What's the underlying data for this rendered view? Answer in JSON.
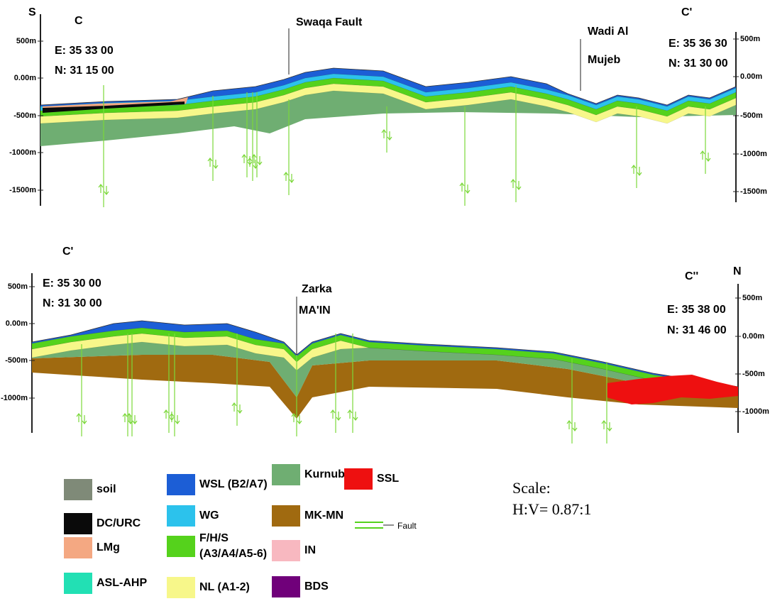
{
  "sections": [
    {
      "start_label": "C",
      "end_label": "C'",
      "left_direction": "S",
      "left_coords": [
        "E: 35 33 00",
        "N: 31 15 00"
      ],
      "right_coords": [
        "E: 35 36 30",
        "N: 31 30 00"
      ],
      "annotations": [
        [
          "Swaqa Fault"
        ],
        [
          "Wadi Al",
          "Mujeb"
        ]
      ],
      "left_axis": [
        "500m",
        "0.00m",
        "-500m",
        "-1000m",
        "-1500m"
      ],
      "right_axis": [
        "500m",
        "0.00m",
        "-500m",
        "-1000m",
        "-1500m"
      ]
    },
    {
      "start_label": "C'",
      "end_label": "C''",
      "right_direction": "N",
      "left_coords": [
        "E: 35 30 00",
        "N: 31 30 00"
      ],
      "right_coords": [
        "E: 35 38 00",
        "N: 31 46 00"
      ],
      "annotations": [
        [
          "Zarka",
          "MA'IN"
        ]
      ],
      "left_axis": [
        "500m",
        "0.00m",
        "-500m",
        "-1000m"
      ],
      "right_axis": [
        "500m",
        "0.00m",
        "-500m",
        "-1000m"
      ]
    }
  ],
  "legend": [
    {
      "lines": [
        "soil"
      ],
      "color": "#7f8a78"
    },
    {
      "lines": [
        "DC/URC"
      ],
      "color": "#0a0a0a"
    },
    {
      "lines": [
        "LMg"
      ],
      "color": "#f4a882"
    },
    {
      "lines": [
        "ASL-AHP"
      ],
      "color": "#22e0b4"
    },
    {
      "lines": [
        "WSL (B2/A7)"
      ],
      "color": "#1c5ed6"
    },
    {
      "lines": [
        "WG"
      ],
      "color": "#2cc2ec"
    },
    {
      "lines": [
        "F/H/S",
        "(A3/A4/A5-6)"
      ],
      "color": "#55d21c"
    },
    {
      "lines": [
        "NL (A1-2)"
      ],
      "color": "#f7f78a"
    },
    {
      "lines": [
        "Kurnub"
      ],
      "color": "#6fae72"
    },
    {
      "lines": [
        "MK-MN"
      ],
      "color": "#a06a10"
    },
    {
      "lines": [
        "IN"
      ],
      "color": "#f8b8c0"
    },
    {
      "lines": [
        "BDS"
      ],
      "color": "#70007a"
    },
    {
      "lines": [
        "SSL"
      ],
      "color": "#ee1010"
    }
  ],
  "fault_label": "Fault",
  "scale": {
    "title": "Scale:",
    "ratio": "H:V= 0.87:1"
  }
}
